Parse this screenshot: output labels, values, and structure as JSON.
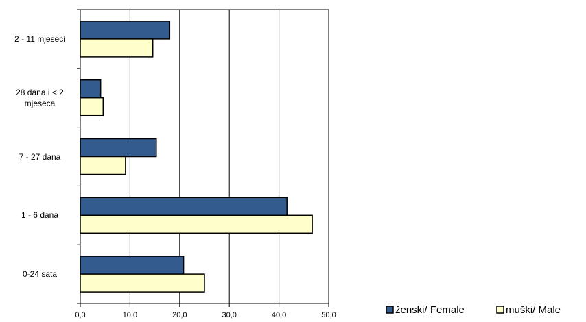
{
  "chart_data": {
    "type": "hbar",
    "categories": [
      "2 - 11 mjeseci",
      "28 dana i < 2 mjeseca",
      "7 - 27 dana",
      "1 - 6 dana",
      "0-24 sata"
    ],
    "series": [
      {
        "name": "ženski/ Female",
        "color": "#335b8e",
        "values": [
          18.0,
          4.1,
          15.3,
          41.6,
          20.8
        ]
      },
      {
        "name": "muški/ Male",
        "color": "#ffffcc",
        "values": [
          14.6,
          4.6,
          9.1,
          46.7,
          25.0
        ]
      }
    ],
    "xlim": [
      0,
      50
    ],
    "xticks": [
      {
        "value": 0,
        "label": "0,0"
      },
      {
        "value": 10,
        "label": "10,0"
      },
      {
        "value": 20,
        "label": "20,0"
      },
      {
        "value": 30,
        "label": "30,0"
      },
      {
        "value": 40,
        "label": "40,0"
      },
      {
        "value": 50,
        "label": "50,0"
      }
    ],
    "grid": true,
    "legend": "bottom-right"
  }
}
